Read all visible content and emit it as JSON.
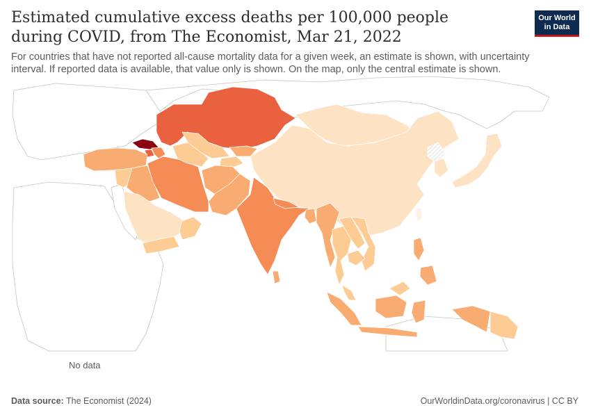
{
  "header": {
    "title": "Estimated cumulative excess deaths per 100,000 people during COVID, from The Economist, Mar 21, 2022",
    "subtitle": "For countries that have not reported all-cause mortality data for a given week, an estimate is shown, with uncertainty interval. If reported data is available, that value only is shown. On the map, only the central estimate is shown.",
    "logo_line1": "Our World",
    "logo_line2": "in Data"
  },
  "legend": {
    "no_data_label": "No data",
    "ticks": [
      "0",
      "100",
      "200",
      "300",
      "400",
      "500",
      "600",
      "700",
      "800"
    ],
    "bins": [
      {
        "from": -100,
        "to": 0,
        "color": "#fef0e2"
      },
      {
        "from": 0,
        "to": 100,
        "color": "#fde3c3"
      },
      {
        "from": 100,
        "to": 200,
        "color": "#fdcc95"
      },
      {
        "from": 200,
        "to": 300,
        "color": "#f9ac72"
      },
      {
        "from": 300,
        "to": 400,
        "color": "#f58b55"
      },
      {
        "from": 400,
        "to": 500,
        "color": "#e9613f"
      },
      {
        "from": 500,
        "to": 600,
        "color": "#cf2d25"
      },
      {
        "from": 600,
        "to": 700,
        "color": "#ad0714"
      },
      {
        "from": 700,
        "to": 800,
        "color": "#880410"
      },
      {
        "from": 800,
        "to": 900,
        "color": "#6b0000"
      }
    ]
  },
  "map": {
    "projection": "robinson",
    "region": "Asia",
    "land_color": "#ffffff",
    "border_color": "#bdbdbd",
    "countries": [
      {
        "name": "China",
        "value": 40
      },
      {
        "name": "Mongolia",
        "value": 60
      },
      {
        "name": "Kazakhstan",
        "value": 450
      },
      {
        "name": "Russia",
        "value": null
      },
      {
        "name": "India",
        "value": 350
      },
      {
        "name": "Iran",
        "value": 360
      },
      {
        "name": "Georgia",
        "value": 750
      },
      {
        "name": "Armenia",
        "value": 450
      },
      {
        "name": "Azerbaijan",
        "value": 300
      },
      {
        "name": "Turkey",
        "value": 200
      },
      {
        "name": "Syria",
        "value": 150
      },
      {
        "name": "Iraq",
        "value": 200
      },
      {
        "name": "Saudi Arabia",
        "value": 30
      },
      {
        "name": "Yemen",
        "value": 130
      },
      {
        "name": "Oman",
        "value": 120
      },
      {
        "name": "Uzbekistan",
        "value": 130
      },
      {
        "name": "Turkmenistan",
        "value": 110
      },
      {
        "name": "Kyrgyzstan",
        "value": 200
      },
      {
        "name": "Tajikistan",
        "value": 150
      },
      {
        "name": "Afghanistan",
        "value": 220
      },
      {
        "name": "Pakistan",
        "value": 230
      },
      {
        "name": "Nepal",
        "value": 320
      },
      {
        "name": "Bangladesh",
        "value": 200
      },
      {
        "name": "Myanmar",
        "value": 250
      },
      {
        "name": "Thailand",
        "value": 120
      },
      {
        "name": "Laos",
        "value": 110
      },
      {
        "name": "Vietnam",
        "value": 100
      },
      {
        "name": "Cambodia",
        "value": 150
      },
      {
        "name": "Malaysia",
        "value": 120
      },
      {
        "name": "Indonesia",
        "value": 220
      },
      {
        "name": "Philippines",
        "value": 230
      },
      {
        "name": "Papua New Guinea",
        "value": 150
      },
      {
        "name": "Japan",
        "value": 60
      },
      {
        "name": "South Korea",
        "value": 20
      },
      {
        "name": "North Korea",
        "value": null
      },
      {
        "name": "Sri Lanka",
        "value": 220
      },
      {
        "name": "Taiwan",
        "value": -10
      }
    ]
  },
  "footer": {
    "source_label": "Data source:",
    "source_value": "The Economist (2024)",
    "credit": "OurWorldinData.org/coronavirus | CC BY"
  }
}
